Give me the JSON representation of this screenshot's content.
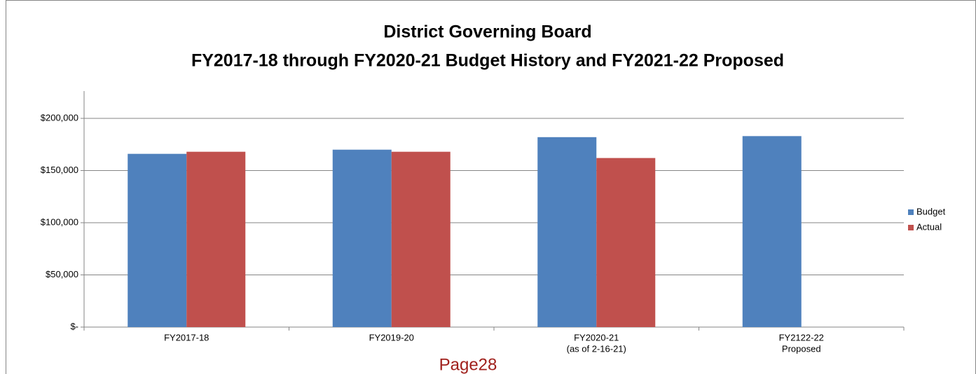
{
  "chart_data": {
    "type": "bar",
    "title": [
      "District Governing Board",
      "FY2017-18 through FY2020-21 Budget History and FY2021-22 Proposed"
    ],
    "categories": [
      [
        "FY2017-18"
      ],
      [
        "FY2019-20"
      ],
      [
        "FY2020-21",
        "(as of 2-16-21)"
      ],
      [
        "FY2122-22",
        "Proposed"
      ]
    ],
    "series": [
      {
        "name": "Budget",
        "color": "#4f81bd",
        "values": [
          166000,
          170000,
          182000,
          183000
        ]
      },
      {
        "name": "Actual",
        "color": "#c0504d",
        "values": [
          168000,
          168000,
          162000,
          null
        ]
      }
    ],
    "ylim": [
      0,
      200000
    ],
    "yticks": [
      {
        "value": 0,
        "label": "$-"
      },
      {
        "value": 50000,
        "label": "$50,000"
      },
      {
        "value": 100000,
        "label": "$100,000"
      },
      {
        "value": 150000,
        "label": "$150,000"
      },
      {
        "value": 200000,
        "label": "$200,000"
      }
    ],
    "grid": true,
    "legend": "right",
    "annotation": "Page28"
  }
}
